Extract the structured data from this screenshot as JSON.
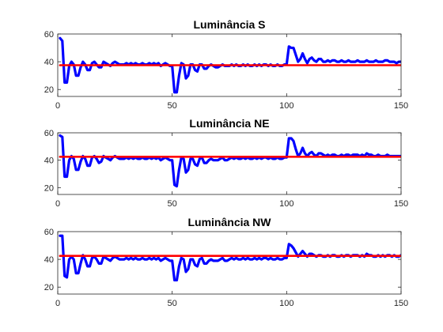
{
  "chart_data": [
    {
      "type": "line",
      "title": "Luminância S",
      "xlabel": "",
      "ylabel": "",
      "xlim": [
        0,
        150
      ],
      "ylim": [
        15,
        60
      ],
      "xticks": [
        0,
        50,
        100,
        150
      ],
      "yticks": [
        20,
        40,
        60
      ],
      "grid": false,
      "series": [
        {
          "color": "#0000ff",
          "x": [
            1,
            2,
            3,
            4,
            5,
            6,
            7,
            8,
            9,
            10,
            11,
            12,
            13,
            14,
            15,
            16,
            17,
            18,
            19,
            20,
            21,
            22,
            23,
            24,
            25,
            26,
            27,
            28,
            29,
            30,
            31,
            32,
            33,
            34,
            35,
            36,
            37,
            38,
            39,
            40,
            41,
            42,
            43,
            44,
            45,
            46,
            47,
            48,
            49,
            50,
            51,
            52,
            53,
            54,
            55,
            56,
            57,
            58,
            59,
            60,
            61,
            62,
            63,
            64,
            65,
            66,
            67,
            68,
            69,
            70,
            71,
            72,
            73,
            74,
            75,
            76,
            77,
            78,
            79,
            80,
            81,
            82,
            83,
            84,
            85,
            86,
            87,
            88,
            89,
            90,
            91,
            92,
            93,
            94,
            95,
            96,
            97,
            98,
            99,
            100,
            101,
            102,
            103,
            104,
            105,
            106,
            107,
            108,
            109,
            110,
            111,
            112,
            113,
            114,
            115,
            116,
            117,
            118,
            119,
            120,
            121,
            122,
            123,
            124,
            125,
            126,
            127,
            128,
            129,
            130,
            131,
            132,
            133,
            134,
            135,
            136,
            137,
            138,
            139,
            140,
            141,
            142,
            143,
            144,
            145,
            146,
            147,
            148,
            149,
            150
          ],
          "y": [
            57,
            55,
            25,
            25,
            37,
            40,
            38,
            30,
            30,
            36,
            40,
            38,
            34,
            34,
            39,
            40,
            38,
            36,
            36,
            40,
            39,
            38,
            37,
            39,
            40,
            39,
            38,
            38,
            38,
            39,
            38,
            39,
            38,
            39,
            38,
            38,
            39,
            38,
            38,
            39,
            38,
            39,
            38,
            39,
            37,
            38,
            39,
            38,
            37,
            37,
            18,
            18,
            30,
            39,
            38,
            28,
            30,
            38,
            38,
            34,
            33,
            38,
            38,
            35,
            35,
            37,
            38,
            37,
            36,
            36,
            37,
            38,
            37,
            37,
            37,
            38,
            37,
            38,
            37,
            37,
            38,
            37,
            38,
            37,
            37,
            38,
            37,
            38,
            37,
            38,
            38,
            37,
            38,
            37,
            37,
            38,
            37,
            37,
            38,
            38,
            51,
            50,
            50,
            45,
            40,
            42,
            46,
            42,
            39,
            42,
            43,
            41,
            40,
            42,
            42,
            40,
            40,
            41,
            40,
            41,
            41,
            40,
            40,
            41,
            40,
            40,
            41,
            40,
            40,
            40,
            41,
            40,
            40,
            40,
            41,
            40,
            40,
            40,
            41,
            40,
            40,
            40,
            41,
            41,
            40,
            40,
            40,
            39,
            40,
            40
          ]
        },
        {
          "color": "#ff0000",
          "x": [
            1,
            150
          ],
          "y": [
            37.5,
            37.5
          ]
        }
      ]
    },
    {
      "type": "line",
      "title": "Luminância NE",
      "xlabel": "",
      "ylabel": "",
      "xlim": [
        0,
        150
      ],
      "ylim": [
        15,
        60
      ],
      "xticks": [
        0,
        50,
        100,
        150
      ],
      "yticks": [
        20,
        40,
        60
      ],
      "grid": false,
      "series": [
        {
          "color": "#0000ff",
          "x": [
            1,
            2,
            3,
            4,
            5,
            6,
            7,
            8,
            9,
            10,
            11,
            12,
            13,
            14,
            15,
            16,
            17,
            18,
            19,
            20,
            21,
            22,
            23,
            24,
            25,
            26,
            27,
            28,
            29,
            30,
            31,
            32,
            33,
            34,
            35,
            36,
            37,
            38,
            39,
            40,
            41,
            42,
            43,
            44,
            45,
            46,
            47,
            48,
            49,
            50,
            51,
            52,
            53,
            54,
            55,
            56,
            57,
            58,
            59,
            60,
            61,
            62,
            63,
            64,
            65,
            66,
            67,
            68,
            69,
            70,
            71,
            72,
            73,
            74,
            75,
            76,
            77,
            78,
            79,
            80,
            81,
            82,
            83,
            84,
            85,
            86,
            87,
            88,
            89,
            90,
            91,
            92,
            93,
            94,
            95,
            96,
            97,
            98,
            99,
            100,
            101,
            102,
            103,
            104,
            105,
            106,
            107,
            108,
            109,
            110,
            111,
            112,
            113,
            114,
            115,
            116,
            117,
            118,
            119,
            120,
            121,
            122,
            123,
            124,
            125,
            126,
            127,
            128,
            129,
            130,
            131,
            132,
            133,
            134,
            135,
            136,
            137,
            138,
            139,
            140,
            141,
            142,
            143,
            144,
            145,
            146,
            147,
            148,
            149,
            150
          ],
          "y": [
            58,
            57,
            28,
            28,
            40,
            43,
            41,
            33,
            33,
            39,
            43,
            41,
            36,
            36,
            42,
            43,
            41,
            38,
            39,
            43,
            42,
            41,
            40,
            42,
            43,
            42,
            41,
            41,
            41,
            42,
            41,
            42,
            41,
            42,
            41,
            41,
            42,
            41,
            41,
            42,
            41,
            42,
            41,
            42,
            40,
            41,
            42,
            41,
            40,
            40,
            22,
            21,
            33,
            42,
            41,
            31,
            33,
            41,
            41,
            37,
            36,
            41,
            42,
            38,
            38,
            40,
            41,
            40,
            40,
            40,
            41,
            42,
            40,
            40,
            41,
            42,
            41,
            42,
            41,
            41,
            42,
            41,
            42,
            41,
            41,
            42,
            41,
            42,
            41,
            42,
            42,
            41,
            42,
            41,
            41,
            42,
            41,
            41,
            42,
            42,
            56,
            56,
            54,
            48,
            43,
            45,
            49,
            45,
            43,
            45,
            46,
            44,
            43,
            45,
            45,
            44,
            43,
            44,
            43,
            44,
            44,
            43,
            43,
            44,
            43,
            44,
            44,
            43,
            44,
            44,
            44,
            43,
            44,
            43,
            45,
            44,
            44,
            43,
            43,
            44,
            43,
            43,
            43,
            44,
            43,
            43,
            43,
            43,
            43,
            43
          ]
        },
        {
          "color": "#ff0000",
          "x": [
            1,
            150
          ],
          "y": [
            42.5,
            42.5
          ]
        }
      ]
    },
    {
      "type": "line",
      "title": "Luminância NW",
      "xlabel": "",
      "ylabel": "",
      "xlim": [
        0,
        150
      ],
      "ylim": [
        15,
        60
      ],
      "xticks": [
        0,
        50,
        100,
        150
      ],
      "yticks": [
        20,
        40,
        60
      ],
      "grid": false,
      "series": [
        {
          "color": "#0000ff",
          "x": [
            1,
            2,
            3,
            4,
            5,
            6,
            7,
            8,
            9,
            10,
            11,
            12,
            13,
            14,
            15,
            16,
            17,
            18,
            19,
            20,
            21,
            22,
            23,
            24,
            25,
            26,
            27,
            28,
            29,
            30,
            31,
            32,
            33,
            34,
            35,
            36,
            37,
            38,
            39,
            40,
            41,
            42,
            43,
            44,
            45,
            46,
            47,
            48,
            49,
            50,
            51,
            52,
            53,
            54,
            55,
            56,
            57,
            58,
            59,
            60,
            61,
            62,
            63,
            64,
            65,
            66,
            67,
            68,
            69,
            70,
            71,
            72,
            73,
            74,
            75,
            76,
            77,
            78,
            79,
            80,
            81,
            82,
            83,
            84,
            85,
            86,
            87,
            88,
            89,
            90,
            91,
            92,
            93,
            94,
            95,
            96,
            97,
            98,
            99,
            100,
            101,
            102,
            103,
            104,
            105,
            106,
            107,
            108,
            109,
            110,
            111,
            112,
            113,
            114,
            115,
            116,
            117,
            118,
            119,
            120,
            121,
            122,
            123,
            124,
            125,
            126,
            127,
            128,
            129,
            130,
            131,
            132,
            133,
            134,
            135,
            136,
            137,
            138,
            139,
            140,
            141,
            142,
            143,
            144,
            145,
            146,
            147,
            148,
            149,
            150
          ],
          "y": [
            57,
            57,
            28,
            27,
            40,
            42,
            40,
            30,
            30,
            37,
            43,
            40,
            35,
            35,
            41,
            42,
            40,
            37,
            37,
            42,
            41,
            40,
            39,
            41,
            42,
            41,
            40,
            40,
            40,
            41,
            40,
            41,
            40,
            41,
            40,
            40,
            41,
            40,
            40,
            41,
            40,
            41,
            40,
            41,
            39,
            40,
            41,
            40,
            39,
            39,
            25,
            25,
            35,
            41,
            40,
            31,
            33,
            40,
            40,
            36,
            35,
            40,
            41,
            37,
            37,
            39,
            40,
            39,
            39,
            39,
            40,
            41,
            39,
            39,
            40,
            41,
            40,
            41,
            40,
            40,
            41,
            40,
            41,
            40,
            40,
            41,
            40,
            41,
            40,
            41,
            41,
            40,
            41,
            40,
            40,
            41,
            40,
            40,
            41,
            41,
            51,
            50,
            48,
            45,
            42,
            44,
            46,
            44,
            42,
            44,
            44,
            43,
            42,
            43,
            43,
            42,
            42,
            43,
            42,
            43,
            43,
            42,
            42,
            43,
            42,
            43,
            43,
            42,
            43,
            43,
            43,
            42,
            43,
            42,
            44,
            43,
            43,
            42,
            42,
            43,
            42,
            43,
            42,
            43,
            43,
            42,
            43,
            42,
            42,
            43
          ]
        },
        {
          "color": "#ff0000",
          "x": [
            1,
            150
          ],
          "y": [
            42.5,
            42.5
          ]
        }
      ]
    }
  ]
}
